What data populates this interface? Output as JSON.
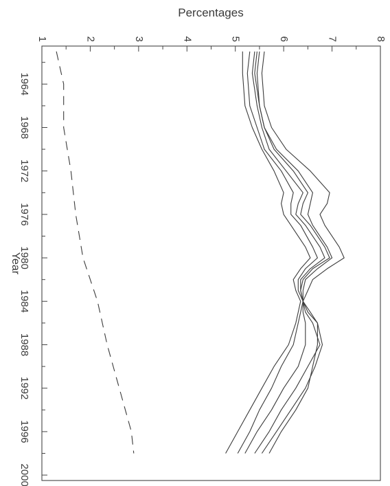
{
  "chart_data": {
    "type": "line",
    "orientation": "rotated",
    "title": "",
    "xlabel": "Year",
    "ylabel": "Percentages",
    "xlim": [
      1960.5,
      2000.5
    ],
    "ylim": [
      1,
      8
    ],
    "x_ticks": [
      1964,
      1968,
      1972,
      1976,
      1980,
      1984,
      1988,
      1992,
      1996,
      2000
    ],
    "x_tick_labels": [
      "1964",
      "1968",
      "1972",
      "1976",
      "1980",
      "1984",
      "1988",
      "1992",
      "1996",
      "2000"
    ],
    "y_ticks": [
      1,
      2,
      3,
      4,
      5,
      6,
      7,
      8
    ],
    "y_tick_labels": [
      "1",
      "2",
      "3",
      "4",
      "5",
      "6",
      "7",
      "8"
    ],
    "grid": false,
    "legend": "none",
    "series": [
      {
        "style": "dashed",
        "x": [
          1961,
          1964,
          1968,
          1972,
          1976,
          1980,
          1984,
          1988,
          1992,
          1996,
          1998
        ],
        "values": [
          1.3,
          1.45,
          1.45,
          1.6,
          1.7,
          1.85,
          2.15,
          2.35,
          2.6,
          2.85,
          2.9
        ]
      },
      {
        "style": "solid",
        "x": [
          1961,
          1963,
          1966,
          1968,
          1970,
          1972,
          1974,
          1975,
          1976,
          1977,
          1979,
          1980,
          1981,
          1982,
          1983,
          1984,
          1985,
          1986,
          1988,
          1990,
          1992,
          1994,
          1996,
          1998
        ],
        "values": [
          5.15,
          5.15,
          5.2,
          5.35,
          5.55,
          5.8,
          6.0,
          5.95,
          6.0,
          6.15,
          6.45,
          6.55,
          6.35,
          6.2,
          6.25,
          6.35,
          6.3,
          6.25,
          6.1,
          5.8,
          5.55,
          5.3,
          5.05,
          4.8
        ]
      },
      {
        "style": "solid",
        "x": [
          1961,
          1963,
          1966,
          1968,
          1970,
          1972,
          1974,
          1975,
          1976,
          1977,
          1979,
          1980,
          1981,
          1982,
          1983,
          1984,
          1985,
          1986,
          1988,
          1990,
          1992,
          1994,
          1996,
          1998
        ],
        "values": [
          5.3,
          5.25,
          5.3,
          5.45,
          5.6,
          5.95,
          6.2,
          6.15,
          6.15,
          6.35,
          6.6,
          6.7,
          6.45,
          6.3,
          6.3,
          6.4,
          6.35,
          6.3,
          6.2,
          5.95,
          5.75,
          5.5,
          5.3,
          5.05
        ]
      },
      {
        "style": "solid",
        "x": [
          1961,
          1963,
          1966,
          1968,
          1970,
          1972,
          1974,
          1975,
          1976,
          1977,
          1979,
          1980,
          1981,
          1982,
          1983,
          1984,
          1985,
          1986,
          1988,
          1990,
          1992,
          1994,
          1996,
          1998
        ],
        "values": [
          5.4,
          5.35,
          5.45,
          5.55,
          5.7,
          6.05,
          6.4,
          6.3,
          6.25,
          6.45,
          6.75,
          6.85,
          6.55,
          6.35,
          6.35,
          6.4,
          6.4,
          6.45,
          6.45,
          6.3,
          6.0,
          5.75,
          5.45,
          5.2
        ]
      },
      {
        "style": "solid",
        "x": [
          1961,
          1963,
          1966,
          1968,
          1970,
          1972,
          1974,
          1975,
          1976,
          1977,
          1979,
          1980,
          1981,
          1982,
          1983,
          1984,
          1985,
          1986,
          1988,
          1990,
          1992,
          1994,
          1996,
          1998
        ],
        "values": [
          5.45,
          5.4,
          5.5,
          5.6,
          5.8,
          6.2,
          6.5,
          6.4,
          6.35,
          6.55,
          6.85,
          6.95,
          6.6,
          6.4,
          6.35,
          6.4,
          6.45,
          6.6,
          6.75,
          6.5,
          6.25,
          5.95,
          5.7,
          5.4
        ]
      },
      {
        "style": "solid",
        "x": [
          1961,
          1963,
          1966,
          1968,
          1970,
          1972,
          1974,
          1975,
          1976,
          1977,
          1979,
          1980,
          1981,
          1982,
          1983,
          1984,
          1985,
          1986,
          1988,
          1990,
          1992,
          1994,
          1996,
          1998
        ],
        "values": [
          5.5,
          5.45,
          5.5,
          5.6,
          5.85,
          6.3,
          6.6,
          6.55,
          6.5,
          6.6,
          6.9,
          7.0,
          6.7,
          6.45,
          6.4,
          6.4,
          6.5,
          6.7,
          6.8,
          6.65,
          6.45,
          6.15,
          5.85,
          5.55
        ]
      },
      {
        "style": "solid",
        "x": [
          1961,
          1963,
          1966,
          1968,
          1970,
          1972,
          1974,
          1975,
          1976,
          1977,
          1979,
          1980,
          1981,
          1982,
          1983,
          1984,
          1985,
          1986,
          1988,
          1990,
          1992,
          1994,
          1996,
          1998
        ],
        "values": [
          5.6,
          5.55,
          5.6,
          5.75,
          6.05,
          6.55,
          6.95,
          6.9,
          6.75,
          6.85,
          7.15,
          7.25,
          6.9,
          6.6,
          6.5,
          6.4,
          6.55,
          6.7,
          6.7,
          6.6,
          6.5,
          6.25,
          5.95,
          5.7
        ]
      }
    ]
  }
}
